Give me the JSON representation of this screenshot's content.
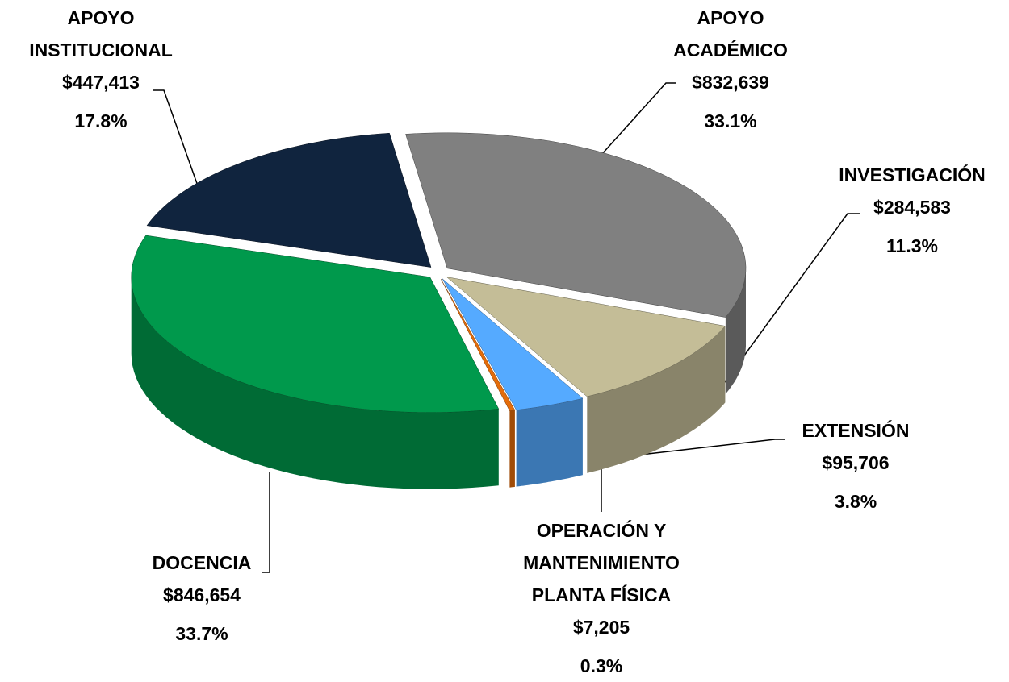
{
  "chart_data": {
    "type": "pie",
    "categories": [
      "APOYO ACADÉMICO",
      "INVESTIGACIÓN",
      "EXTENSIÓN",
      "OPERACIÓN Y MANTENIMIENTO PLANTA FÍSICA",
      "DOCENCIA",
      "APOYO INSTITUCIONAL"
    ],
    "values": [
      832639,
      284583,
      95706,
      7205,
      846654,
      447413
    ],
    "value_labels": [
      "$832,639",
      "$284,583",
      "$95,706",
      "$7,205",
      "$846,654",
      "$447,413"
    ],
    "percentages": [
      33.1,
      11.3,
      3.8,
      0.3,
      33.7,
      17.8
    ],
    "percentage_labels": [
      "33.1%",
      "11.3%",
      "3.8%",
      "0.3%",
      "33.7%",
      "17.8%"
    ],
    "colors": [
      "#808080",
      "#c4bd97",
      "#55aaff",
      "#e46c0a",
      "#00994c",
      "#10243e"
    ]
  }
}
